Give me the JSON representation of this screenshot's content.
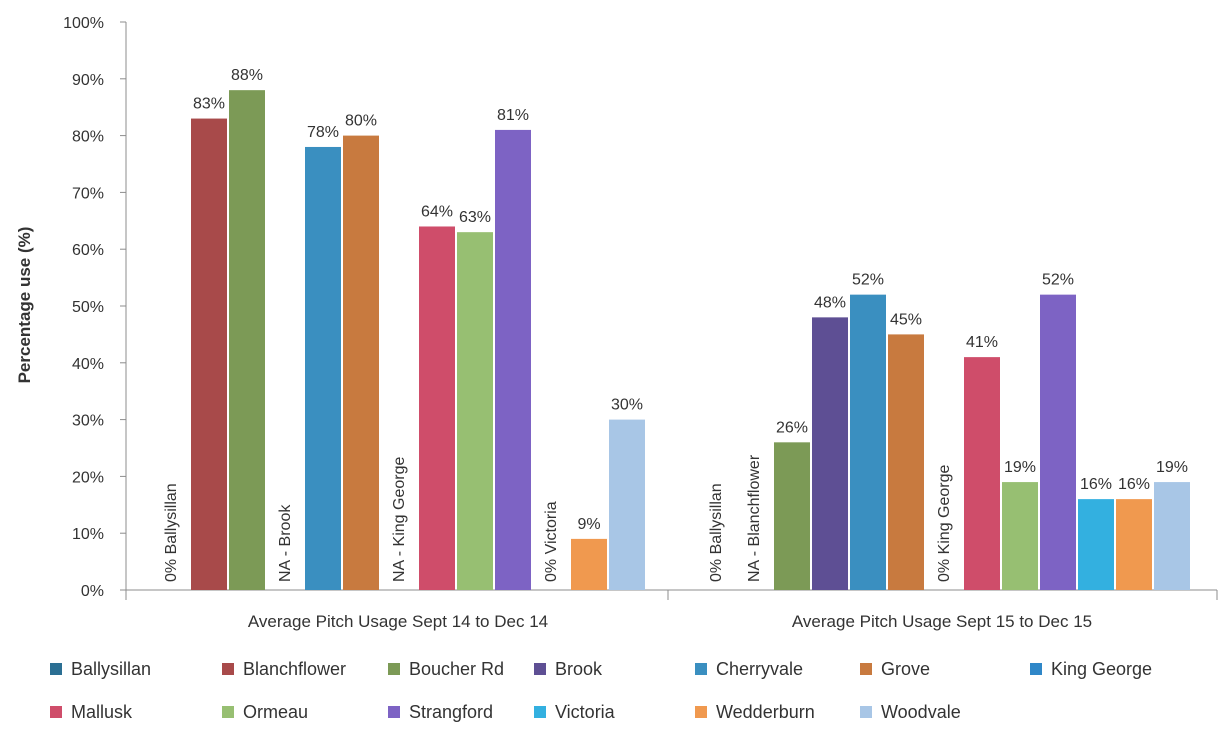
{
  "chart_data": {
    "type": "bar",
    "title": "",
    "ylabel": "Percentage use (%)",
    "ylim": [
      0,
      100
    ],
    "y_ticks": [
      "0%",
      "10%",
      "20%",
      "30%",
      "40%",
      "50%",
      "60%",
      "70%",
      "80%",
      "90%",
      "100%"
    ],
    "grid": false,
    "legend_position": "bottom",
    "categories": [
      "Average Pitch Usage Sept 14 to Dec 14",
      "Average Pitch Usage Sept 15 to Dec 15"
    ],
    "series": [
      {
        "name": "Ballysillan",
        "color": "#2b6f93",
        "values": [
          0,
          0
        ],
        "labels": [
          "0%  Ballysillan",
          "0%  Ballysillan"
        ]
      },
      {
        "name": "Blanchflower",
        "color": "#a84a4a",
        "values": [
          83,
          null
        ],
        "labels": [
          "83%",
          "NA - Blanchflower"
        ]
      },
      {
        "name": "Boucher Rd",
        "color": "#7c9a56",
        "values": [
          88,
          26
        ],
        "labels": [
          "88%",
          "26%"
        ]
      },
      {
        "name": "Brook",
        "color": "#5e4f94",
        "values": [
          null,
          48
        ],
        "labels": [
          "NA - Brook",
          "48%"
        ]
      },
      {
        "name": "Cherryvale",
        "color": "#3a8fc0",
        "values": [
          78,
          52
        ],
        "labels": [
          "78%",
          "52%"
        ]
      },
      {
        "name": "Grove",
        "color": "#c87a3f",
        "values": [
          80,
          45
        ],
        "labels": [
          "80%",
          "45%"
        ]
      },
      {
        "name": "King George",
        "color": "#2f87c8",
        "values": [
          null,
          0
        ],
        "labels": [
          "NA - King George",
          "0%  King George"
        ]
      },
      {
        "name": "Mallusk",
        "color": "#cf4d6a",
        "values": [
          64,
          41
        ],
        "labels": [
          "64%",
          "41%"
        ]
      },
      {
        "name": "Ormeau",
        "color": "#97bf72",
        "values": [
          63,
          19
        ],
        "labels": [
          "63%",
          "19%"
        ]
      },
      {
        "name": "Strangford",
        "color": "#7d63c4",
        "values": [
          81,
          52
        ],
        "labels": [
          "81%",
          "52%"
        ]
      },
      {
        "name": "Victoria",
        "color": "#33b0e0",
        "values": [
          0,
          16
        ],
        "labels": [
          "0% Victoria",
          "16%"
        ]
      },
      {
        "name": "Wedderburn",
        "color": "#f0994f",
        "values": [
          9,
          16
        ],
        "labels": [
          "9%",
          "16%"
        ]
      },
      {
        "name": "Woodvale",
        "color": "#a8c6e6",
        "values": [
          30,
          19
        ],
        "labels": [
          "30%",
          "19%"
        ]
      }
    ]
  }
}
